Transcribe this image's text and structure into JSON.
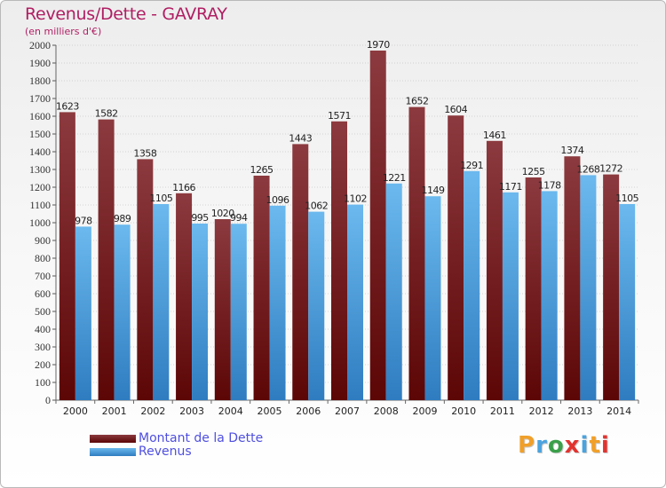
{
  "title": "Revenus/Dette - GAVRAY",
  "subtitle": "(en milliers d'€)",
  "colors": {
    "title": "#b01e63",
    "legend_text": "#4f4fe0",
    "dette_top": "#8c3a3f",
    "dette_bottom": "#5c0606",
    "revenus_top": "#6bb9ee",
    "revenus_bottom": "#2f7cc0",
    "grid": "#b4b4b4"
  },
  "logo": {
    "letters": [
      "P",
      "r",
      "o",
      "x",
      "i",
      "t",
      "i"
    ],
    "colors": [
      "#f0a02a",
      "#4aa3df",
      "#3aa04a",
      "#e2332f",
      "#4aa3df",
      "#f0a02a",
      "#e2332f"
    ]
  },
  "chart_data": {
    "type": "bar",
    "title": "Revenus/Dette - GAVRAY",
    "subtitle": "(en milliers d'€)",
    "categories": [
      "2000",
      "2001",
      "2002",
      "2003",
      "2004",
      "2005",
      "2006",
      "2007",
      "2008",
      "2009",
      "2010",
      "2011",
      "2012",
      "2013",
      "2014"
    ],
    "series": [
      {
        "name": "Montant de la Dette",
        "values": [
          1623,
          1582,
          1358,
          1166,
          1020,
          1265,
          1443,
          1571,
          1970,
          1652,
          1604,
          1461,
          1255,
          1374,
          1272
        ]
      },
      {
        "name": "Revenus",
        "values": [
          978,
          989,
          1105,
          995,
          994,
          1096,
          1062,
          1102,
          1221,
          1149,
          1291,
          1171,
          1178,
          1268,
          1105
        ]
      }
    ],
    "ylim": [
      0,
      2000
    ],
    "ytick_step": 100,
    "grid": true,
    "legend_position": "bottom-left",
    "xlabel": "",
    "ylabel": ""
  }
}
